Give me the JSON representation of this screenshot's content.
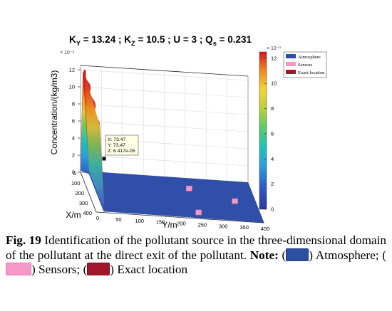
{
  "chart_data": {
    "type": "surface",
    "title": {
      "parts": [
        "K",
        "Y",
        " = 13.24  ; K",
        "Z",
        " = 10.5  ; U = 3 ; Q",
        "s",
        " = 0.231"
      ]
    },
    "xlabel": "Y/m",
    "ylabel": "X/m",
    "zlabel": "Concentration/(kg/m3)",
    "x_ticks": [
      "0",
      "50",
      "100",
      "150",
      "200",
      "250",
      "300",
      "350",
      "400"
    ],
    "y_ticks": [
      "0",
      "100",
      "200",
      "300",
      "400"
    ],
    "z_ticks": [
      "0",
      "2",
      "4",
      "6",
      "8",
      "10",
      "12"
    ],
    "z_exponent": "× 10⁻³",
    "xlim": [
      0,
      400
    ],
    "ylim": [
      0,
      400
    ],
    "zlim": [
      0,
      12.5
    ],
    "colorbar": {
      "ticks": [
        "0",
        "2",
        "4",
        "6",
        "8",
        "10",
        "12"
      ],
      "exponent": "× 10⁻³",
      "range": [
        0,
        12.5
      ]
    },
    "surface_peak": {
      "y_range": [
        0,
        20
      ],
      "x_range": [
        0,
        400
      ],
      "z_max": 12.3
    },
    "sensors": [
      {
        "y": 250,
        "x": 100,
        "z": 0
      },
      {
        "y": 350,
        "x": 200,
        "z": 0
      },
      {
        "y": 250,
        "x": 340,
        "z": 0
      }
    ],
    "datatip": {
      "lines": [
        "X: 73.47",
        "Y: 73.47",
        "Z: 6.417e-05"
      ],
      "y": 73.47,
      "x": 73.47,
      "z": 6.4e-05
    },
    "legend": {
      "position": "top-right",
      "entries": [
        {
          "label": "Atmosphere",
          "color": "#2c4fa3"
        },
        {
          "label": "Sensors",
          "color": "#f598c8"
        },
        {
          "label": "Exact location",
          "color": "#a1162b"
        }
      ]
    }
  },
  "caption": {
    "fig_label": "Fig. 19",
    "text": " Identification of the pollutant source in the three-dimensional domain of the pollutant at the direct exit of the pollutant. ",
    "note_label": "Note:",
    "open1": " (",
    "close1": ") Atmosphere; (",
    "close2": ") Sensors; (",
    "close3": ") Exact location"
  }
}
